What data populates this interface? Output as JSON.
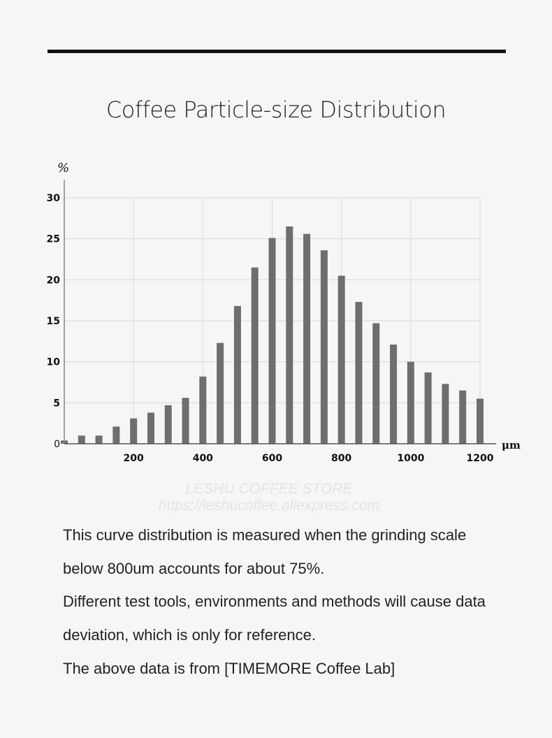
{
  "title": "Coffee Particle-size Distribution",
  "watermark": {
    "line1": "LESHU COFFEE STORE",
    "line2": "https://leshucoffee.aliexpress.com"
  },
  "description": [
    "This curve distribution is measured when the grinding scale",
    "below 800um accounts for about 75%.",
    "Different test tools, environments and methods will cause data",
    "deviation, which is only for reference.",
    "The above data is from [TIMEMORE Coffee Lab]"
  ],
  "chart_data": {
    "type": "bar",
    "title": "Coffee Particle-size Distribution",
    "xlabel": "μm",
    "ylabel": "%",
    "x": [
      0,
      50,
      100,
      150,
      200,
      250,
      300,
      350,
      400,
      450,
      500,
      550,
      600,
      650,
      700,
      750,
      800,
      850,
      900,
      950,
      1000,
      1050,
      1100,
      1150,
      1200
    ],
    "values": [
      0.4,
      1.0,
      1.0,
      2.1,
      3.1,
      3.8,
      4.7,
      5.6,
      8.2,
      12.3,
      16.8,
      21.5,
      25.1,
      26.5,
      25.6,
      23.6,
      20.5,
      17.3,
      14.7,
      12.1,
      10.0,
      8.7,
      7.3,
      6.5,
      5.5
    ],
    "xlim": [
      0,
      1200
    ],
    "ylim": [
      0,
      30
    ],
    "xticks": [
      "200",
      "400",
      "600",
      "800",
      "1000",
      "1200"
    ],
    "yticks": [
      "0",
      "5",
      "10",
      "15",
      "20",
      "25",
      "30"
    ],
    "grid": true,
    "bar_color": "#6e6e6e"
  }
}
